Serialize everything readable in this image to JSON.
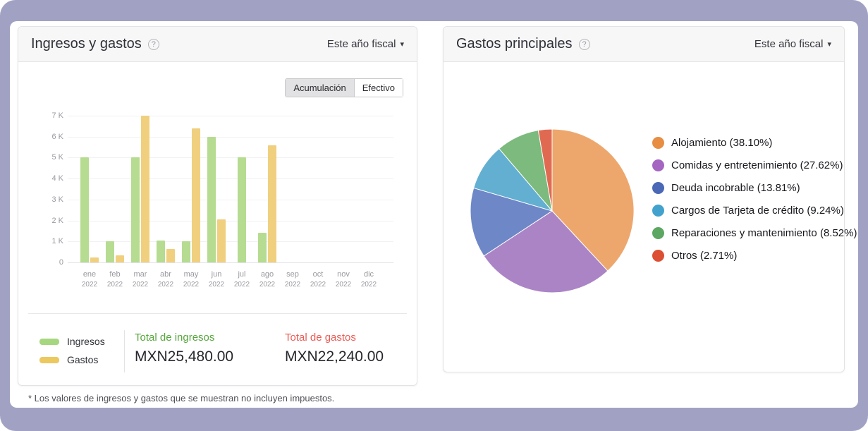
{
  "page": {
    "background_color": "#a1a2c3",
    "panel_color": "#ffffff"
  },
  "icons": {
    "help": "?",
    "caret_down": "▾"
  },
  "income_card": {
    "title": "Ingresos y gastos",
    "period_selector": {
      "label": "Este año fiscal"
    },
    "view_toggle": {
      "options": [
        "Acumulación",
        "Efectivo"
      ],
      "selected": "Acumulación"
    },
    "legend": [
      {
        "label": "Ingresos",
        "color": "#a6d77f"
      },
      {
        "label": "Gastos",
        "color": "#ecc95f"
      }
    ],
    "total_income": {
      "label": "Total de ingresos",
      "value": "MXN25,480.00",
      "color": "#56a63c"
    },
    "total_expenses": {
      "label": "Total de gastos",
      "value": "MXN22,240.00",
      "color": "#ea5c55"
    }
  },
  "expenses_card": {
    "title": "Gastos principales",
    "period_selector": {
      "label": "Este año fiscal"
    }
  },
  "footnote": "* Los valores de ingresos y gastos que se muestran no incluyen impuestos.",
  "chart_data": [
    {
      "type": "bar",
      "title": "Ingresos y gastos",
      "categories": [
        "ene",
        "feb",
        "mar",
        "abr",
        "may",
        "jun",
        "jul",
        "ago",
        "sep",
        "oct",
        "nov",
        "dic"
      ],
      "category_year": "2022",
      "series": [
        {
          "name": "Ingresos",
          "color": "#b5dc90",
          "values": [
            5000,
            1000,
            5000,
            1050,
            1000,
            6000,
            5000,
            1430,
            0,
            0,
            0,
            0
          ]
        },
        {
          "name": "Gastos",
          "color": "#f0d07e",
          "values": [
            230,
            330,
            7000,
            630,
            6400,
            2050,
            0,
            5600,
            0,
            0,
            0,
            0
          ]
        }
      ],
      "ylim": [
        0,
        7000
      ],
      "yticks": [
        0,
        1000,
        2000,
        3000,
        4000,
        5000,
        6000,
        7000
      ],
      "ytick_labels": [
        "0",
        "1 K",
        "2 K",
        "3 K",
        "4 K",
        "5 K",
        "6 K",
        "7 K"
      ],
      "grid": true,
      "legend_position": "bottom-left",
      "totals": {
        "ingresos": "MXN25,480.00",
        "gastos": "MXN22,240.00"
      }
    },
    {
      "type": "pie",
      "title": "Gastos principales",
      "start_angle_deg": 0,
      "direction": "clockwise",
      "legend_position": "right",
      "slices": [
        {
          "label": "Alojamiento (38.10%)",
          "value": 38.1,
          "color": "#eda76d",
          "legend_color": "#e78e42"
        },
        {
          "label": "Comidas y entretenimiento (27.62%)",
          "value": 27.62,
          "color": "#ab84c6",
          "legend_color": "#a466c1"
        },
        {
          "label": "Deuda incobrable (13.81%)",
          "value": 13.81,
          "color": "#6e87c7",
          "legend_color": "#4a68b6"
        },
        {
          "label": "Cargos de Tarjeta de crédito (9.24%)",
          "value": 9.24,
          "color": "#63afd1",
          "legend_color": "#42a2cd"
        },
        {
          "label": "Reparaciones y mantenimiento (8.52%)",
          "value": 8.52,
          "color": "#7cba7d",
          "legend_color": "#5ca761"
        },
        {
          "label": "Otros (2.71%)",
          "value": 2.71,
          "color": "#e06a51",
          "legend_color": "#dc4f32"
        }
      ]
    }
  ]
}
